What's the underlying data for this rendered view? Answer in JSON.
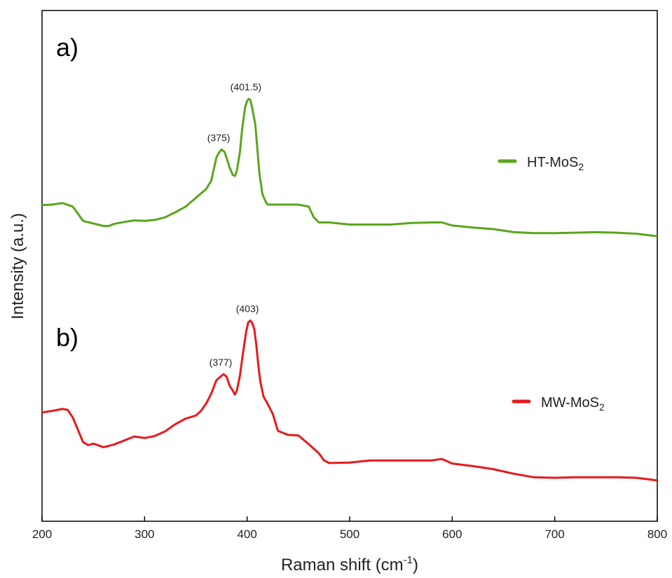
{
  "chart_data": {
    "type": "line",
    "xlabel": "Raman shift (cm",
    "xlabel_sup": "-1",
    "xlabel_end": ")",
    "ylabel": "Intensity (a.u.)",
    "xlim": [
      200,
      800
    ],
    "xticks": [
      200,
      300,
      400,
      500,
      600,
      700,
      800
    ],
    "ylim": [
      0,
      100
    ],
    "grid": false,
    "legend_placement": "right",
    "series": [
      {
        "name": "HT-MoS",
        "name_sub": "2",
        "panel": "a)",
        "color": "#5aa51c",
        "x": [
          200,
          210,
          220,
          230,
          240,
          250,
          260,
          265,
          270,
          280,
          290,
          300,
          310,
          320,
          330,
          340,
          350,
          355,
          360,
          365,
          370,
          372,
          375,
          378,
          380,
          383,
          386,
          388,
          390,
          393,
          395,
          398,
          400,
          401.5,
          403,
          405,
          408,
          410,
          412,
          415,
          418,
          420,
          425,
          430,
          440,
          450,
          460,
          465,
          470,
          480,
          500,
          520,
          540,
          560,
          580,
          585,
          590,
          600,
          620,
          640,
          660,
          680,
          700,
          720,
          740,
          760,
          780,
          800
        ],
        "y": [
          61.9,
          62.0,
          62.3,
          61.6,
          58.8,
          58.3,
          57.8,
          57.8,
          58.2,
          58.6,
          58.9,
          58.8,
          59.0,
          59.5,
          60.5,
          61.6,
          63.3,
          64.2,
          65.0,
          66.7,
          71.2,
          72.0,
          72.8,
          72.3,
          71.1,
          69.2,
          67.8,
          67.6,
          68.6,
          72.3,
          76.6,
          81.0,
          82.3,
          82.7,
          82.5,
          80.9,
          77.6,
          72.9,
          68.1,
          64.0,
          62.6,
          62.0,
          62.0,
          62.0,
          62.0,
          62.0,
          61.6,
          59.5,
          58.5,
          58.5,
          58.1,
          58.1,
          58.1,
          58.4,
          58.5,
          58.5,
          58.5,
          57.9,
          57.5,
          57.2,
          56.6,
          56.4,
          56.4,
          56.5,
          56.6,
          56.5,
          56.3,
          55.8
        ]
      },
      {
        "name": "MW-MoS",
        "name_sub": "2",
        "panel": "b)",
        "color": "#e8191b",
        "x": [
          200,
          210,
          220,
          225,
          230,
          240,
          245,
          250,
          260,
          270,
          280,
          290,
          300,
          310,
          320,
          330,
          340,
          350,
          355,
          360,
          365,
          370,
          374,
          377,
          380,
          383,
          386,
          388,
          390,
          393,
          396,
          399,
          401,
          403,
          405,
          407,
          409,
          411,
          413,
          416,
          420,
          425,
          430,
          440,
          450,
          460,
          465,
          470,
          475,
          480,
          500,
          520,
          540,
          560,
          580,
          590,
          600,
          620,
          640,
          660,
          680,
          700,
          720,
          740,
          760,
          780,
          800
        ],
        "y": [
          21.3,
          21.6,
          22.0,
          21.8,
          20.3,
          15.5,
          14.9,
          15.2,
          14.5,
          15.0,
          15.8,
          16.6,
          16.3,
          16.7,
          17.6,
          19.0,
          20.1,
          20.7,
          21.6,
          23.0,
          25.0,
          27.6,
          28.3,
          28.8,
          28.3,
          26.5,
          25.6,
          24.8,
          25.6,
          28.5,
          33.0,
          37.0,
          38.9,
          39.3,
          38.8,
          37.6,
          34.5,
          30.3,
          27.2,
          24.4,
          23.0,
          21.0,
          17.7,
          16.9,
          16.8,
          15.1,
          14.2,
          13.3,
          11.9,
          11.4,
          11.5,
          11.9,
          11.9,
          11.9,
          11.9,
          12.2,
          11.3,
          10.8,
          10.2,
          9.3,
          8.6,
          8.5,
          8.6,
          8.6,
          8.6,
          8.5,
          8.0
        ]
      }
    ],
    "annotations": [
      {
        "text": "(375)",
        "x": 375,
        "y": 72.8,
        "series": 0
      },
      {
        "text": "(401.5)",
        "x": 401.5,
        "y": 82.7,
        "series": 0
      },
      {
        "text": "(377)",
        "x": 377,
        "y": 28.8,
        "series": 1
      },
      {
        "text": "(403)",
        "x": 403,
        "y": 39.3,
        "series": 1
      }
    ]
  }
}
